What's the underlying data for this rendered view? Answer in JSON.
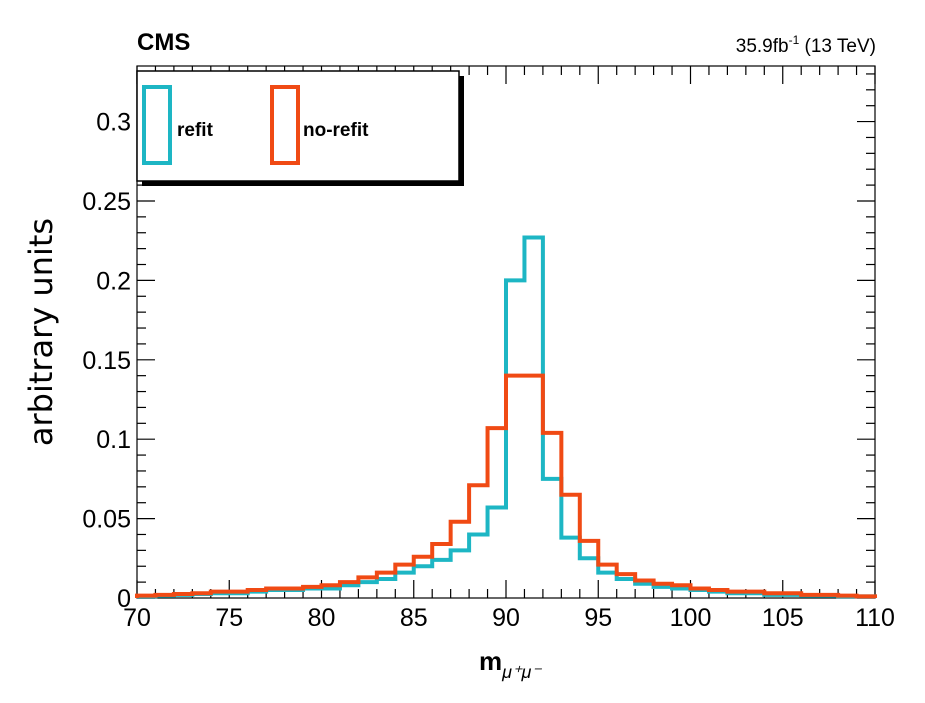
{
  "header": {
    "experiment": "CMS",
    "lumi_value": "35.9fb",
    "lumi_exp": "-1",
    "energy": " (13 TeV)"
  },
  "chart_data": {
    "type": "step-histogram",
    "xlabel": "m",
    "xlabel_sub": "μ⁺μ⁻",
    "ylabel": "arbitrary units",
    "xlim": [
      70,
      110
    ],
    "ylim": [
      0,
      0.335
    ],
    "xticks": [
      "70",
      "75",
      "80",
      "85",
      "90",
      "95",
      "100",
      "105",
      "110"
    ],
    "yticks": [
      "0",
      "0.05",
      "0.1",
      "0.15",
      "0.2",
      "0.25",
      "0.3"
    ],
    "ytick_values": [
      0,
      0.05,
      0.1,
      0.15,
      0.2,
      0.25,
      0.3
    ],
    "xtick_values": [
      70,
      75,
      80,
      85,
      90,
      95,
      100,
      105,
      110
    ],
    "bin_edges": [
      70,
      71,
      72,
      73,
      74,
      75,
      76,
      77,
      78,
      79,
      80,
      81,
      82,
      83,
      84,
      85,
      86,
      87,
      88,
      89,
      90,
      91,
      92,
      93,
      94,
      95,
      96,
      97,
      98,
      99,
      100,
      101,
      102,
      103,
      104,
      105,
      106,
      107,
      108,
      109,
      110
    ],
    "series": [
      {
        "name": "refit",
        "color": "#1db6c4",
        "values": [
          0.001,
          0.0015,
          0.002,
          0.0025,
          0.003,
          0.003,
          0.004,
          0.005,
          0.005,
          0.006,
          0.006,
          0.008,
          0.01,
          0.012,
          0.016,
          0.02,
          0.024,
          0.03,
          0.04,
          0.057,
          0.2,
          0.227,
          0.075,
          0.038,
          0.025,
          0.016,
          0.012,
          0.009,
          0.007,
          0.006,
          0.005,
          0.004,
          0.003,
          0.003,
          0.002,
          0.002,
          0.0015,
          0.0015,
          0.001,
          0.001
        ]
      },
      {
        "name": "no-refit",
        "color": "#f04a14",
        "values": [
          0.0015,
          0.002,
          0.0025,
          0.003,
          0.004,
          0.004,
          0.005,
          0.006,
          0.006,
          0.007,
          0.008,
          0.01,
          0.013,
          0.016,
          0.021,
          0.026,
          0.034,
          0.048,
          0.071,
          0.107,
          0.14,
          0.14,
          0.104,
          0.065,
          0.036,
          0.021,
          0.015,
          0.011,
          0.009,
          0.008,
          0.006,
          0.005,
          0.004,
          0.004,
          0.003,
          0.003,
          0.002,
          0.002,
          0.0015,
          0.001
        ]
      }
    ],
    "legend_position": "top-left",
    "grid": false
  }
}
